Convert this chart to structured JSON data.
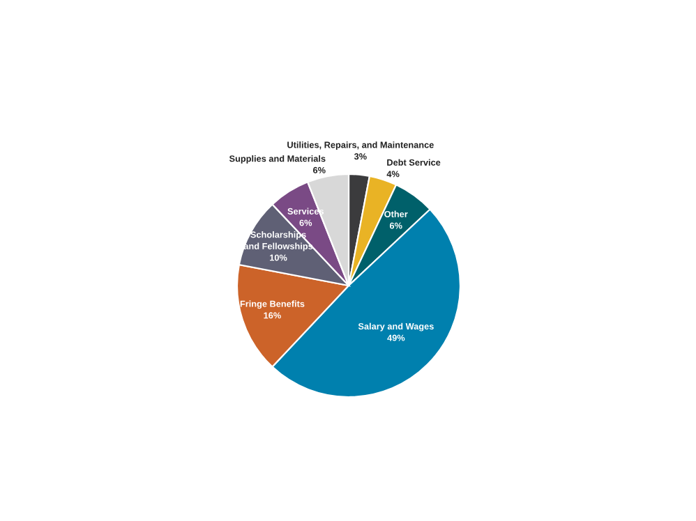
{
  "chart_data": {
    "type": "pie",
    "categories": [
      "Utilities, Repairs, and Maintenance",
      "Debt Service",
      "Other",
      "Salary and Wages",
      "Fringe Benefits",
      "Scholarships\nand Fellowships",
      "Services",
      "Supplies and Materials"
    ],
    "values": [
      3,
      4,
      6,
      49,
      16,
      10,
      6,
      6
    ],
    "value_labels": [
      "3%",
      "4%",
      "6%",
      "49%",
      "16%",
      "10%",
      "6%",
      "6%"
    ],
    "colors": [
      "#3b3b3d",
      "#e9b325",
      "#00606a",
      "#0080ae",
      "#cc6329",
      "#5f6075",
      "#7a4a85",
      "#d8d8d8"
    ]
  }
}
